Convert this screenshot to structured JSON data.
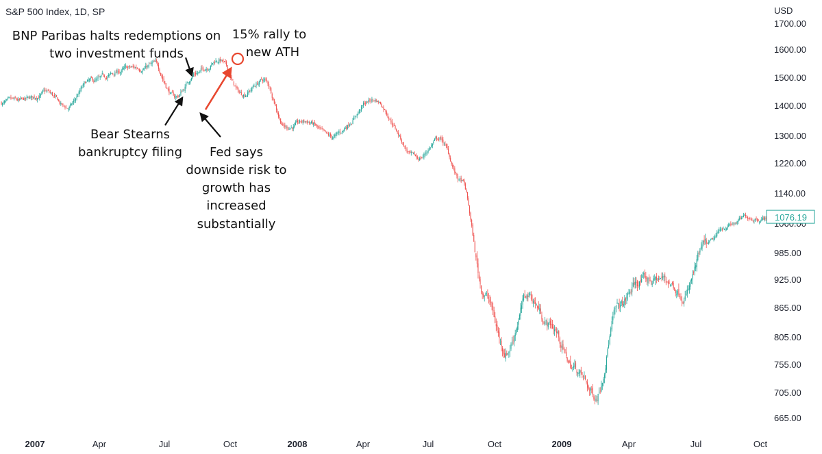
{
  "header": {
    "title": "S&P 500 Index, 1D, SP"
  },
  "price_axis": {
    "unit": "USD",
    "labels": [
      "1700.00",
      "1600.00",
      "1500.00",
      "1400.00",
      "1300.00",
      "1220.00",
      "1140.00",
      "1060.00",
      "985.00",
      "925.00",
      "865.00",
      "805.00",
      "755.00",
      "705.00",
      "665.00"
    ],
    "last_price": "1076.19"
  },
  "time_axis": {
    "labels": [
      {
        "text": "2007",
        "bold": true
      },
      {
        "text": "Apr",
        "bold": false
      },
      {
        "text": "Jul",
        "bold": false
      },
      {
        "text": "Oct",
        "bold": false
      },
      {
        "text": "2008",
        "bold": true
      },
      {
        "text": "Apr",
        "bold": false
      },
      {
        "text": "Jul",
        "bold": false
      },
      {
        "text": "Oct",
        "bold": false
      },
      {
        "text": "2009",
        "bold": true
      },
      {
        "text": "Apr",
        "bold": false
      },
      {
        "text": "Jul",
        "bold": false
      },
      {
        "text": "Oct",
        "bold": false
      }
    ]
  },
  "annotations": {
    "bnp": [
      "BNP Paribas halts redemptions on",
      "two investment funds"
    ],
    "bear": [
      "Bear Stearns",
      "bankruptcy filing"
    ],
    "fed": [
      "Fed says",
      "downside risk to",
      "growth has",
      "increased",
      "substantially"
    ],
    "rally": [
      "15% rally to",
      "new ATH"
    ]
  },
  "colors": {
    "up": "#26a69a",
    "down": "#ef5350",
    "arrow": "#111111",
    "rally_arrow": "#e8472f"
  },
  "chart_data": {
    "type": "candlestick",
    "title": "S&P 500 Index, 1D, SP",
    "ylabel": "USD",
    "ylim": [
      650,
      1720
    ],
    "y_scale": "log",
    "x_range": [
      "2007-01",
      "2009-10"
    ],
    "last_price": 1076.19,
    "anchors": [
      {
        "date": "2007-01",
        "close": 1410
      },
      {
        "date": "2007-02",
        "close": 1445
      },
      {
        "date": "2007-03",
        "close": 1390
      },
      {
        "date": "2007-04",
        "close": 1480
      },
      {
        "date": "2007-06",
        "close": 1530
      },
      {
        "date": "2007-07",
        "close": 1545
      },
      {
        "date": "2007-08",
        "close": 1430
      },
      {
        "date": "2007-09",
        "close": 1520
      },
      {
        "date": "2007-10",
        "close": 1565
      },
      {
        "date": "2007-11",
        "close": 1440
      },
      {
        "date": "2007-12",
        "close": 1490
      },
      {
        "date": "2008-01",
        "close": 1330
      },
      {
        "date": "2008-02",
        "close": 1345
      },
      {
        "date": "2008-03",
        "close": 1290
      },
      {
        "date": "2008-05",
        "close": 1420
      },
      {
        "date": "2008-07",
        "close": 1230
      },
      {
        "date": "2008-08",
        "close": 1290
      },
      {
        "date": "2008-09",
        "close": 1170
      },
      {
        "date": "2008-10",
        "close": 900
      },
      {
        "date": "2008-11",
        "close": 780
      },
      {
        "date": "2008-12",
        "close": 890
      },
      {
        "date": "2009-01",
        "close": 830
      },
      {
        "date": "2009-02",
        "close": 750
      },
      {
        "date": "2009-03",
        "close": 700
      },
      {
        "date": "2009-04",
        "close": 860
      },
      {
        "date": "2009-05",
        "close": 920
      },
      {
        "date": "2009-06",
        "close": 925
      },
      {
        "date": "2009-07",
        "close": 900
      },
      {
        "date": "2009-08",
        "close": 1000
      },
      {
        "date": "2009-09",
        "close": 1055
      },
      {
        "date": "2009-10",
        "close": 1076
      }
    ]
  }
}
